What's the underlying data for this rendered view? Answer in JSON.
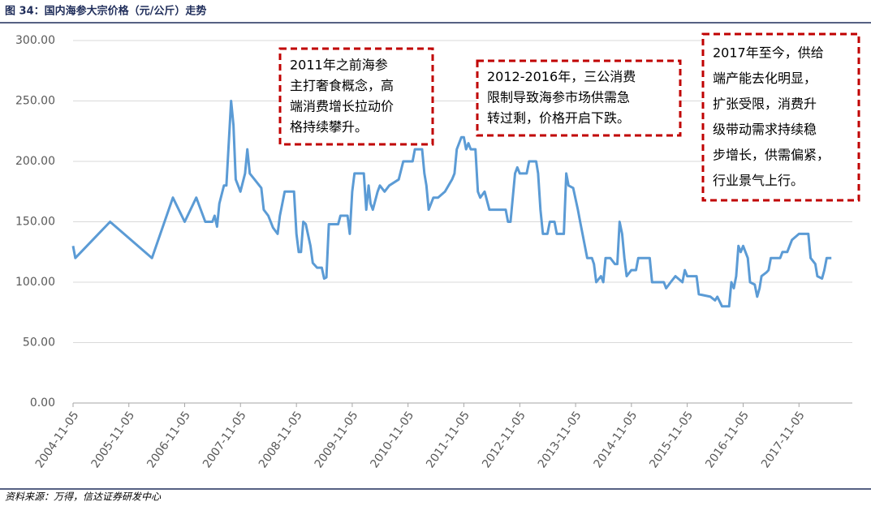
{
  "chart_data": {
    "type": "line",
    "title": "图 34：国内海参大宗价格（元/公斤）走势",
    "source": "资料来源：万得，信达证券研发中心",
    "annotations": [
      [
        "2011年之前海参",
        "主打奢食概念，高",
        "端消费增长拉动价",
        "格持续攀升。"
      ],
      [
        "2012-2016年，三公消费",
        "限制导致海参市场供需急",
        "转过剩，价格开启下跌。"
      ],
      [
        "2017年至今，供给",
        "端产能去化明显，",
        "扩张受限，消费升",
        "级带动需求持续稳",
        "步增长，供需偏紧，",
        "行业景气上行。"
      ]
    ],
    "x": [
      "2004-11-05",
      "2004-11-20",
      "2005-07-05",
      "2006-04-05",
      "2006-08-20",
      "2006-11-05",
      "2007-01-20",
      "2007-03-20",
      "2007-05-05",
      "2007-05-20",
      "2007-06-05",
      "2007-06-20",
      "2007-07-20",
      "2007-08-05",
      "2007-09-05",
      "2007-09-20",
      "2007-10-05",
      "2007-11-05",
      "2007-12-05",
      "2007-12-20",
      "2008-01-05",
      "2008-02-05",
      "2008-03-20",
      "2008-04-05",
      "2008-05-05",
      "2008-06-05",
      "2008-07-05",
      "2008-07-20",
      "2008-08-05",
      "2008-08-20",
      "2008-10-20",
      "2008-11-05",
      "2008-11-20",
      "2008-12-05",
      "2008-12-20",
      "2009-01-05",
      "2009-02-05",
      "2009-02-20",
      "2009-03-20",
      "2009-04-20",
      "2009-05-05",
      "2009-05-20",
      "2009-06-05",
      "2009-08-05",
      "2009-08-20",
      "2009-10-05",
      "2009-10-20",
      "2009-11-05",
      "2009-11-20",
      "2010-01-20",
      "2010-02-05",
      "2010-02-20",
      "2010-03-05",
      "2010-03-20",
      "2010-04-20",
      "2010-05-05",
      "2010-06-05",
      "2010-07-05",
      "2010-09-05",
      "2010-10-05",
      "2010-12-05",
      "2010-12-20",
      "2011-02-05",
      "2011-02-20",
      "2011-03-05",
      "2011-03-20",
      "2011-04-20",
      "2011-05-20",
      "2011-07-05",
      "2011-08-20",
      "2011-09-05",
      "2011-09-20",
      "2011-10-20",
      "2011-11-05",
      "2011-11-20",
      "2011-12-05",
      "2011-12-20",
      "2012-01-20",
      "2012-02-05",
      "2012-02-20",
      "2012-03-20",
      "2012-04-20",
      "2012-08-05",
      "2012-08-20",
      "2012-09-05",
      "2012-10-05",
      "2012-10-20",
      "2012-11-05",
      "2012-12-20",
      "2013-01-05",
      "2013-02-20",
      "2013-03-05",
      "2013-03-20",
      "2013-04-05",
      "2013-05-05",
      "2013-05-20",
      "2013-06-20",
      "2013-07-05",
      "2013-08-20",
      "2013-09-05",
      "2013-09-20",
      "2013-10-20",
      "2013-11-20",
      "2013-12-05",
      "2013-12-20",
      "2014-01-20",
      "2014-02-20",
      "2014-03-05",
      "2014-03-20",
      "2014-04-20",
      "2014-05-05",
      "2014-05-20",
      "2014-06-20",
      "2014-07-20",
      "2014-08-05",
      "2014-08-20",
      "2014-09-05",
      "2014-09-20",
      "2014-10-05",
      "2014-11-05",
      "2014-12-05",
      "2014-12-20",
      "2015-03-05",
      "2015-03-20",
      "2015-06-05",
      "2015-06-20",
      "2015-07-20",
      "2015-08-20",
      "2015-10-05",
      "2015-10-20",
      "2015-11-05",
      "2016-01-05",
      "2016-01-20",
      "2016-04-05",
      "2016-05-05",
      "2016-05-20",
      "2016-06-20",
      "2016-08-05",
      "2016-08-20",
      "2016-09-05",
      "2016-09-20",
      "2016-10-05",
      "2016-10-20",
      "2016-11-05",
      "2016-12-05",
      "2016-12-20",
      "2017-01-20",
      "2017-02-05",
      "2017-02-20",
      "2017-03-05",
      "2017-04-05",
      "2017-04-20",
      "2017-05-05",
      "2017-07-05",
      "2017-07-20",
      "2017-08-20",
      "2017-09-20",
      "2017-11-05",
      "2018-01-05",
      "2018-01-20",
      "2018-02-20",
      "2018-03-05",
      "2018-04-05",
      "2018-04-20",
      "2018-05-05",
      "2018-06-05"
    ],
    "series": [
      {
        "color": "#5b9bd5",
        "values": [
          130,
          120,
          150,
          120,
          170,
          150,
          170,
          150,
          150,
          155,
          146,
          165,
          180,
          180,
          250,
          230,
          185,
          175,
          190,
          210,
          190,
          185,
          178,
          160,
          155,
          145,
          140,
          155,
          165,
          175,
          175,
          140,
          125,
          125,
          150,
          148,
          130,
          116,
          112,
          112,
          103,
          104,
          148,
          148,
          155,
          155,
          140,
          175,
          190,
          190,
          160,
          180,
          165,
          160,
          175,
          180,
          175,
          180,
          185,
          200,
          200,
          210,
          210,
          190,
          180,
          160,
          170,
          170,
          175,
          185,
          190,
          210,
          220,
          220,
          210,
          215,
          210,
          210,
          175,
          170,
          175,
          160,
          160,
          150,
          150,
          190,
          195,
          190,
          190,
          200,
          200,
          190,
          160,
          140,
          140,
          150,
          150,
          140,
          140,
          190,
          180,
          178,
          160,
          150,
          140,
          120,
          120,
          115,
          100,
          105,
          100,
          120,
          120,
          115,
          115,
          150,
          140,
          120,
          105,
          110,
          110,
          120,
          120,
          100,
          100,
          95,
          100,
          105,
          100,
          110,
          105,
          105,
          90,
          88,
          85,
          88,
          80,
          80,
          100,
          95,
          105,
          130,
          125,
          130,
          120,
          100,
          98,
          88,
          95,
          105,
          108,
          110,
          120,
          120,
          125,
          125,
          135,
          140,
          140,
          120,
          115,
          105,
          103,
          110,
          120,
          120
        ]
      }
    ],
    "xlim": [
      "2004-11-05",
      "2018-10-20"
    ],
    "xticks": [
      "2004-11-05",
      "2005-11-05",
      "2006-11-05",
      "2007-11-05",
      "2008-11-05",
      "2009-11-05",
      "2010-11-05",
      "2011-11-05",
      "2012-11-05",
      "2013-11-05",
      "2014-11-05",
      "2015-11-05",
      "2016-11-05",
      "2017-11-05"
    ],
    "ylim": [
      0,
      300
    ],
    "yticks": [
      {
        "value": 0,
        "label": "0.00"
      },
      {
        "value": 50,
        "label": "50.00"
      },
      {
        "value": 100,
        "label": "100.00"
      },
      {
        "value": 150,
        "label": "150.00"
      },
      {
        "value": 200,
        "label": "200.00"
      },
      {
        "value": 250,
        "label": "250.00"
      },
      {
        "value": 300,
        "label": "300.00"
      }
    ],
    "grid": true
  }
}
